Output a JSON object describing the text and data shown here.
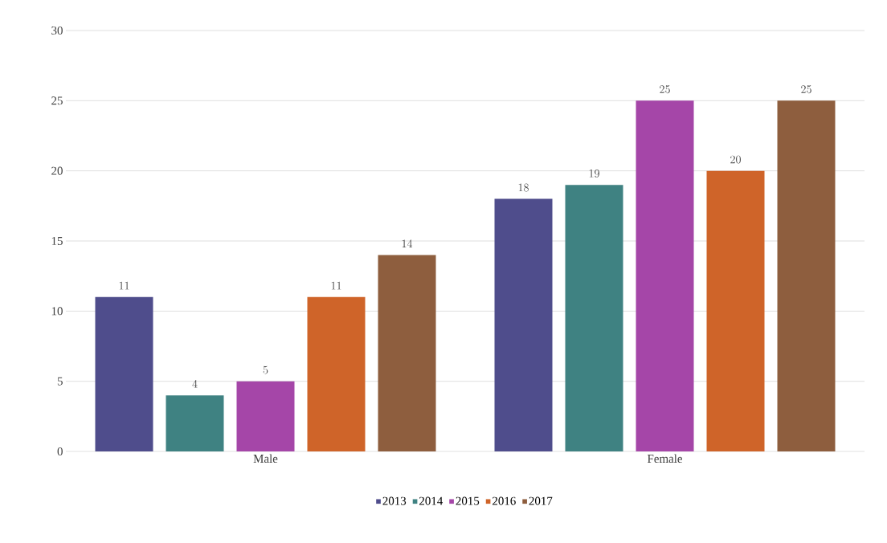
{
  "chart_data": {
    "type": "bar",
    "categories": [
      "Male",
      "Female"
    ],
    "series": [
      {
        "name": "2013",
        "color": "#4f4d8c",
        "values": [
          11,
          18
        ]
      },
      {
        "name": "2014",
        "color": "#3f8282",
        "values": [
          4,
          19
        ]
      },
      {
        "name": "2015",
        "color": "#a546a8",
        "values": [
          5,
          25
        ]
      },
      {
        "name": "2016",
        "color": "#cf6429",
        "values": [
          11,
          20
        ]
      },
      {
        "name": "2017",
        "color": "#8e5e3e",
        "values": [
          14,
          25
        ]
      }
    ],
    "ylim": [
      0,
      30
    ],
    "yticks": [
      0,
      5,
      10,
      15,
      20,
      25,
      30
    ],
    "grid": "y",
    "legend": "bottom",
    "data_labels": true
  }
}
